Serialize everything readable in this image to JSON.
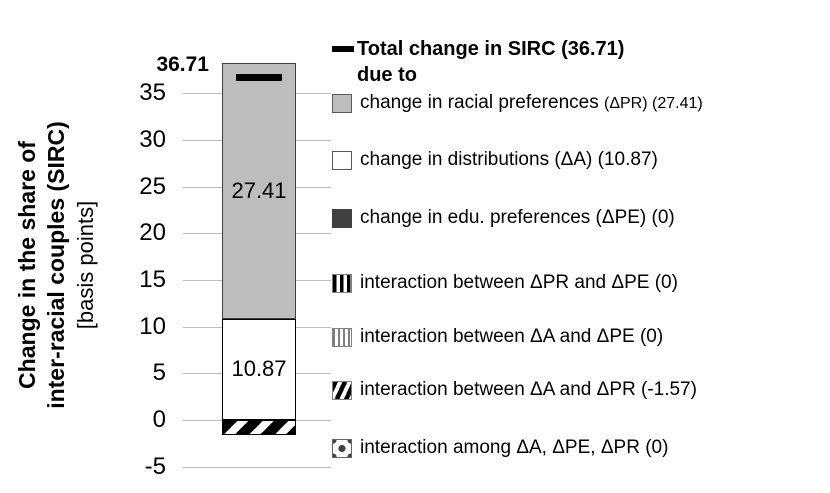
{
  "axis": {
    "ylabel_line1": "Change in the share of",
    "ylabel_line2": "inter-racial couples (SIRC)",
    "ylabel_line3": "[basis points]"
  },
  "chart_data": {
    "type": "bar",
    "stacked": true,
    "title": "",
    "xlabel": "",
    "ylabel": "Change in the share of inter-racial couples (SIRC) [basis points]",
    "ylim": [
      -5,
      38.5
    ],
    "yticks": [
      35,
      30,
      25,
      20,
      15,
      10,
      5,
      0,
      -5
    ],
    "grid": "horizontal",
    "legend_position": "right",
    "total_marker": {
      "value": 36.71,
      "label": "36.71"
    },
    "segments": [
      {
        "name": "change in racial preferences (ΔPR)",
        "value": 27.41,
        "bar_label": "27.41",
        "pattern": "gray"
      },
      {
        "name": "change in distributions (ΔA)",
        "value": 10.87,
        "bar_label": "10.87",
        "pattern": "white"
      },
      {
        "name": "change in edu. preferences (ΔPE)",
        "value": 0,
        "bar_label": "",
        "pattern": "dark"
      },
      {
        "name": "interaction between ΔPR and ΔPE",
        "value": 0,
        "bar_label": "",
        "pattern": "vstripe-thick"
      },
      {
        "name": "interaction between ΔA and ΔPE",
        "value": 0,
        "bar_label": "",
        "pattern": "vstripe-thin"
      },
      {
        "name": "interaction between ΔA and ΔPR",
        "value": -1.57,
        "bar_label": "",
        "pattern": "diag-stripe"
      },
      {
        "name": "interaction among ΔA, ΔPE, ΔPR",
        "value": 0,
        "bar_label": "",
        "pattern": "dots"
      }
    ],
    "legend": {
      "title": "Total change in SIRC (36.71)",
      "subtitle": "due to",
      "items": [
        {
          "pattern": "gray",
          "text": "change in racial preferences",
          "suffix": "(ΔPR) (27.41)"
        },
        {
          "pattern": "white",
          "text": "change in distributions (ΔA) (10.87)",
          "suffix": ""
        },
        {
          "pattern": "dark",
          "text": "change in edu. preferences (ΔPE) (0)",
          "suffix": ""
        },
        {
          "pattern": "vstripe-thick",
          "text": "interaction between ΔPR and ΔPE (0)",
          "suffix": ""
        },
        {
          "pattern": "vstripe-thin",
          "text": "interaction between ΔA and ΔPE (0)",
          "suffix": ""
        },
        {
          "pattern": "diag-stripe",
          "text": "interaction between ΔA and ΔPR (-1.57)",
          "suffix": ""
        },
        {
          "pattern": "dots",
          "text": "interaction among ΔA, ΔPE, ΔPR (0)",
          "suffix": ""
        }
      ]
    },
    "colors": {
      "gray_fill": "#bdbdbd",
      "dark_fill": "#404040",
      "gridline": "#bfbfbf",
      "total_marker": "#000000",
      "text": "#000000"
    }
  }
}
